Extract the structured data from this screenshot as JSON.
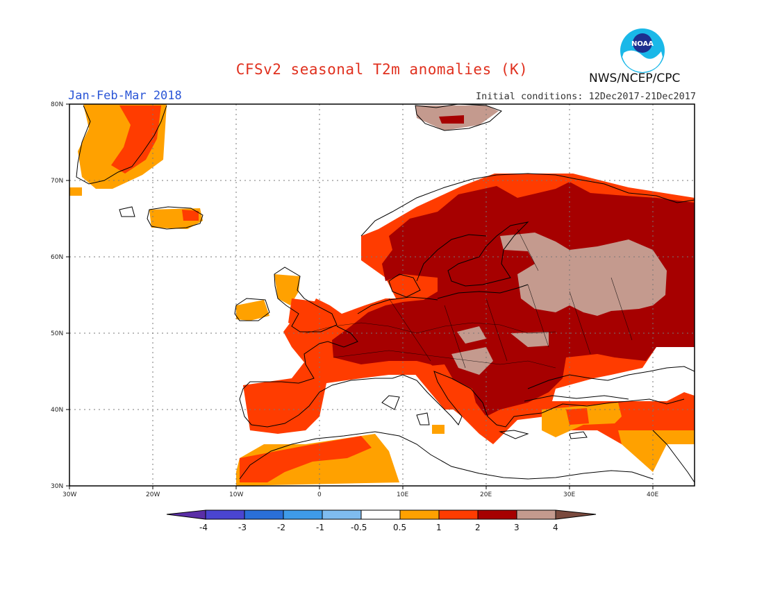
{
  "title": "CFSv2 seasonal T2m anomalies (K)",
  "period": "Jan-Feb-Mar 2018",
  "initial_conditions": "Initial conditions: 12Dec2017-21Dec2017",
  "agency": "NWS/NCEP/CPC",
  "logo_text": "NOAA",
  "lat_labels": [
    "80N",
    "70N",
    "60N",
    "50N",
    "40N",
    "30N"
  ],
  "lon_labels": [
    "30W",
    "20W",
    "10W",
    "0",
    "10E",
    "20E",
    "30E",
    "40E"
  ],
  "colorbar": {
    "labels": [
      "-4",
      "-3",
      "-2",
      "-1",
      "-0.5",
      "0.5",
      "1",
      "2",
      "3",
      "4"
    ],
    "colors": [
      "#5a2ea6",
      "#4a45d0",
      "#2a6fd8",
      "#3f9be8",
      "#7fbcf0",
      "#ffffff",
      "#ffa100",
      "#ff3c00",
      "#a60000",
      "#c49a8e",
      "#7a4a3e"
    ]
  }
}
